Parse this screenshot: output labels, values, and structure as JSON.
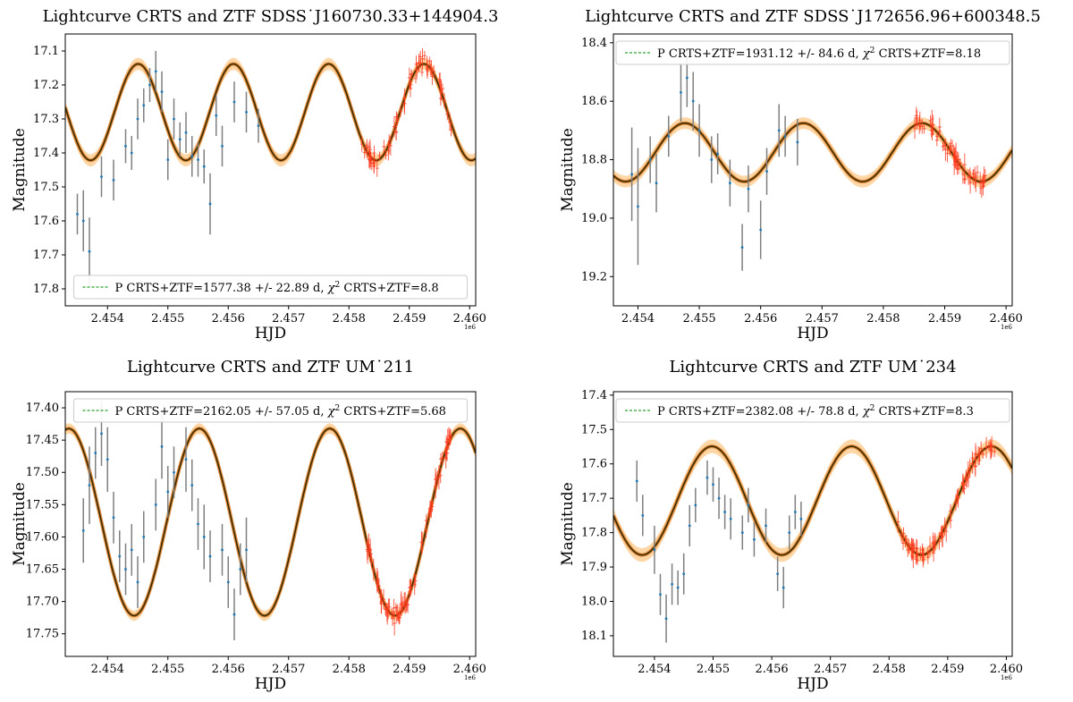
{
  "colors": {
    "crts_bar": "#7f7f7f",
    "crts_point": "#1f77b4",
    "ztf": "#ff3a1f",
    "band": "#ffcf96",
    "fit_outer": "#e08a3a",
    "fit_inner": "#3a2a00",
    "legend_line": "#2ca02c"
  },
  "chart_data": [
    {
      "type": "scatter",
      "title": "Lightcurve CRTS and ZTF SDSS˙J160730.33+144904.3",
      "xlabel": "HJD",
      "ylabel": "Magnitude",
      "x_scale_label": "1e6",
      "xlim": [
        2.4533,
        2.4601
      ],
      "ylim": [
        17.85,
        17.05
      ],
      "x_ticks": [
        2.454,
        2.455,
        2.456,
        2.457,
        2.458,
        2.459,
        2.46
      ],
      "x_tick_labels": [
        "2.454",
        "2.455",
        "2.456",
        "2.457",
        "2.458",
        "2.459",
        "2.460"
      ],
      "y_ticks": [
        17.1,
        17.2,
        17.3,
        17.4,
        17.5,
        17.6,
        17.7,
        17.8
      ],
      "y_tick_labels": [
        "17.1",
        "17.2",
        "17.3",
        "17.4",
        "17.5",
        "17.6",
        "17.7",
        "17.8"
      ],
      "legend": {
        "placement": "lower-center",
        "prefix": "P CRTS+ZTF=1577.38 +/- 22.89 d, ",
        "chi": "χ",
        "sup": "2",
        "suffix": " CRTS+ZTF=8.8"
      },
      "fit": {
        "mean": 17.28,
        "amplitude": 0.142,
        "period": 0.00157738,
        "t_min": 2.45372,
        "band": 0.018
      },
      "crts": {
        "x": [
          2.4535,
          2.4536,
          2.4537,
          2.4539,
          2.4541,
          2.4543,
          2.4545,
          2.4547,
          2.4549,
          2.4551,
          2.4553,
          2.4555,
          2.4557,
          2.4559,
          2.4561,
          2.4563,
          2.4565,
          2.4544,
          2.4546,
          2.4548,
          2.455,
          2.4552,
          2.4554,
          2.4556,
          2.4558
        ],
        "y": [
          17.58,
          17.6,
          17.69,
          17.47,
          17.48,
          17.38,
          17.3,
          17.2,
          17.22,
          17.3,
          17.34,
          17.42,
          17.55,
          17.38,
          17.25,
          17.28,
          17.32,
          17.4,
          17.26,
          17.16,
          17.42,
          17.36,
          17.41,
          17.44,
          17.29
        ],
        "err": [
          0.06,
          0.09,
          0.1,
          0.06,
          0.06,
          0.05,
          0.06,
          0.05,
          0.06,
          0.06,
          0.06,
          0.05,
          0.09,
          0.06,
          0.06,
          0.06,
          0.05,
          0.05,
          0.05,
          0.06,
          0.06,
          0.05,
          0.06,
          0.05,
          0.06
        ]
      },
      "ztf": {
        "x_start": 2.4582,
        "x_end": 2.4597,
        "count": 70,
        "jitter": 0.05,
        "err": 0.02
      }
    },
    {
      "type": "scatter",
      "title": "Lightcurve CRTS and ZTF SDSS˙J172656.96+600348.5",
      "xlabel": "HJD",
      "ylabel": "Magnitude",
      "x_scale_label": "1e6",
      "xlim": [
        2.4536,
        2.4601
      ],
      "ylim": [
        19.3,
        18.37
      ],
      "x_ticks": [
        2.454,
        2.455,
        2.456,
        2.457,
        2.458,
        2.459,
        2.46
      ],
      "x_tick_labels": [
        "2.454",
        "2.455",
        "2.456",
        "2.457",
        "2.458",
        "2.459",
        "2.460"
      ],
      "y_ticks": [
        18.4,
        18.6,
        18.8,
        19.0,
        19.2
      ],
      "y_tick_labels": [
        "18.4",
        "18.6",
        "18.8",
        "19.0",
        "19.2"
      ],
      "legend": {
        "placement": "top-center",
        "prefix": "P CRTS+ZTF=1931.12 +/- 84.6 d, ",
        "chi": "χ",
        "sup": "2",
        "suffix": " CRTS+ZTF=8.18"
      },
      "fit": {
        "mean": 18.775,
        "amplitude": 0.1,
        "period": 0.00193112,
        "t_min": 2.4538,
        "band": 0.02
      },
      "crts": {
        "x": [
          2.4539,
          2.454,
          2.4542,
          2.4543,
          2.4545,
          2.4547,
          2.4548,
          2.4549,
          2.455,
          2.4552,
          2.4553,
          2.4555,
          2.4557,
          2.4558,
          2.456,
          2.4561,
          2.4563,
          2.4564,
          2.4566
        ],
        "y": [
          18.85,
          18.96,
          18.8,
          18.88,
          18.72,
          18.57,
          18.52,
          18.6,
          18.7,
          18.8,
          18.78,
          18.88,
          19.1,
          18.9,
          19.04,
          18.84,
          18.7,
          18.72,
          18.74
        ],
        "err": [
          0.16,
          0.2,
          0.08,
          0.1,
          0.07,
          0.1,
          0.1,
          0.1,
          0.09,
          0.08,
          0.07,
          0.08,
          0.08,
          0.08,
          0.1,
          0.08,
          0.09,
          0.07,
          0.08
        ]
      },
      "ztf": {
        "x_start": 2.4585,
        "x_end": 2.4597,
        "count": 60,
        "jitter": 0.06,
        "err": 0.025
      }
    },
    {
      "type": "scatter",
      "title": "Lightcurve CRTS and ZTF UM˙211",
      "xlabel": "HJD",
      "ylabel": "Magnitude",
      "x_scale_label": "1e6",
      "xlim": [
        2.4533,
        2.4601
      ],
      "ylim": [
        17.785,
        17.375
      ],
      "x_ticks": [
        2.454,
        2.455,
        2.456,
        2.457,
        2.458,
        2.459,
        2.46
      ],
      "x_tick_labels": [
        "2.454",
        "2.455",
        "2.456",
        "2.457",
        "2.458",
        "2.459",
        "2.460"
      ],
      "y_ticks": [
        17.4,
        17.45,
        17.5,
        17.55,
        17.6,
        17.65,
        17.7,
        17.75
      ],
      "y_tick_labels": [
        "17.40",
        "17.45",
        "17.50",
        "17.55",
        "17.60",
        "17.65",
        "17.70",
        "17.75"
      ],
      "legend": {
        "placement": "top-center",
        "prefix": "P CRTS+ZTF=2162.05 +/- 57.05 d, ",
        "chi": "χ",
        "sup": "2",
        "suffix": " CRTS+ZTF=5.68"
      },
      "fit": {
        "mean": 17.577,
        "amplitude": 0.145,
        "period": 0.00216205,
        "t_min": 2.45444,
        "band": 0.008
      },
      "crts": {
        "x": [
          2.4536,
          2.4537,
          2.4538,
          2.4539,
          2.454,
          2.4541,
          2.4542,
          2.4543,
          2.4544,
          2.4545,
          2.4546,
          2.4548,
          2.4549,
          2.455,
          2.4551,
          2.4553,
          2.4554,
          2.4555,
          2.4556,
          2.4557,
          2.4559,
          2.456,
          2.4561,
          2.4562,
          2.4563
        ],
        "y": [
          17.59,
          17.52,
          17.47,
          17.44,
          17.48,
          17.57,
          17.63,
          17.65,
          17.62,
          17.67,
          17.6,
          17.55,
          17.46,
          17.53,
          17.5,
          17.48,
          17.52,
          17.58,
          17.6,
          17.63,
          17.62,
          17.67,
          17.72,
          17.65,
          17.62
        ],
        "err": [
          0.05,
          0.06,
          0.04,
          0.05,
          0.05,
          0.04,
          0.04,
          0.04,
          0.04,
          0.04,
          0.04,
          0.04,
          0.05,
          0.04,
          0.04,
          0.05,
          0.04,
          0.04,
          0.05,
          0.04,
          0.04,
          0.04,
          0.04,
          0.04,
          0.05
        ]
      },
      "ztf": {
        "x_start": 2.4583,
        "x_end": 2.4597,
        "count": 80,
        "jitter": 0.025,
        "err": 0.012
      }
    },
    {
      "type": "scatter",
      "title": "Lightcurve CRTS and ZTF UM˙234",
      "xlabel": "HJD",
      "ylabel": "Magnitude",
      "x_scale_label": "1e6",
      "xlim": [
        2.4533,
        2.4601
      ],
      "ylim": [
        18.16,
        17.39
      ],
      "x_ticks": [
        2.454,
        2.455,
        2.456,
        2.457,
        2.458,
        2.459,
        2.46
      ],
      "x_tick_labels": [
        "2.454",
        "2.455",
        "2.456",
        "2.457",
        "2.458",
        "2.459",
        "2.460"
      ],
      "y_ticks": [
        17.4,
        17.5,
        17.6,
        17.7,
        17.8,
        17.9,
        18.0,
        18.1
      ],
      "y_tick_labels": [
        "17.4",
        "17.5",
        "17.6",
        "17.7",
        "17.8",
        "17.9",
        "18.0",
        "18.1"
      ],
      "legend": {
        "placement": "top-center",
        "prefix": "P CRTS+ZTF=2382.08 +/- 78.8 d, ",
        "chi": "χ",
        "sup": "2",
        "suffix": " CRTS+ZTF=8.3"
      },
      "fit": {
        "mean": 17.707,
        "amplitude": 0.158,
        "period": 0.00238208,
        "t_min": 2.45379,
        "band": 0.02
      },
      "crts": {
        "x": [
          2.4537,
          2.4538,
          2.454,
          2.4541,
          2.4542,
          2.4543,
          2.4544,
          2.4545,
          2.4546,
          2.4547,
          2.4549,
          2.455,
          2.4551,
          2.4552,
          2.4553,
          2.4555,
          2.4556,
          2.4557,
          2.4559,
          2.4561,
          2.4562,
          2.4563,
          2.4564,
          2.4565
        ],
        "y": [
          17.65,
          17.75,
          17.85,
          17.98,
          18.05,
          17.95,
          17.96,
          17.92,
          17.78,
          17.72,
          17.64,
          17.66,
          17.7,
          17.74,
          17.76,
          17.8,
          17.72,
          17.82,
          17.78,
          17.92,
          17.96,
          17.8,
          17.74,
          17.76
        ],
        "err": [
          0.06,
          0.06,
          0.07,
          0.06,
          0.07,
          0.06,
          0.05,
          0.06,
          0.06,
          0.05,
          0.05,
          0.05,
          0.06,
          0.05,
          0.06,
          0.05,
          0.05,
          0.05,
          0.05,
          0.05,
          0.06,
          0.05,
          0.05,
          0.05
        ]
      },
      "ztf": {
        "x_start": 2.4581,
        "x_end": 2.4598,
        "count": 80,
        "jitter": 0.04,
        "err": 0.02
      }
    }
  ]
}
